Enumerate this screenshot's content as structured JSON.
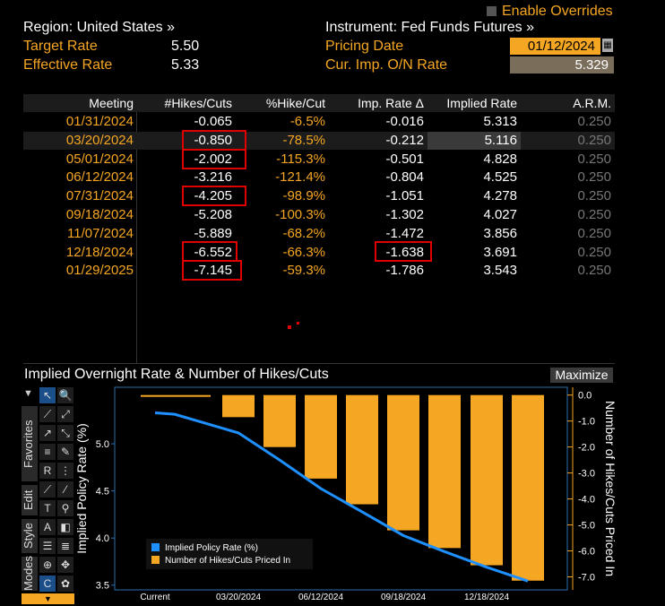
{
  "header": {
    "region": "Region: United States »",
    "instrument": "Instrument: Fed Funds Futures »",
    "enable_overrides": "Enable Overrides",
    "target_rate_label": "Target Rate",
    "target_rate_value": "5.50",
    "effective_rate_label": "Effective Rate",
    "effective_rate_value": "5.33",
    "pricing_date_label": "Pricing Date",
    "pricing_date_value": "01/12/2024",
    "cur_imp_label": "Cur. Imp. O/N Rate",
    "cur_imp_value": "5.329"
  },
  "table": {
    "columns": [
      "Meeting",
      "#Hikes/Cuts",
      "%Hike/Cut",
      "Imp. Rate Δ",
      "Implied Rate",
      "A.R.M."
    ],
    "rows": [
      [
        "01/31/2024",
        "-0.065",
        "-6.5%",
        "-0.016",
        "5.313",
        "0.250"
      ],
      [
        "03/20/2024",
        "-0.850",
        "-78.5%",
        "-0.212",
        "5.116",
        "0.250"
      ],
      [
        "05/01/2024",
        "-2.002",
        "-115.3%",
        "-0.501",
        "4.828",
        "0.250"
      ],
      [
        "06/12/2024",
        "-3.216",
        "-121.4%",
        "-0.804",
        "4.525",
        "0.250"
      ],
      [
        "07/31/2024",
        "-4.205",
        "-98.9%",
        "-1.051",
        "4.278",
        "0.250"
      ],
      [
        "09/18/2024",
        "-5.208",
        "-100.3%",
        "-1.302",
        "4.027",
        "0.250"
      ],
      [
        "11/07/2024",
        "-5.889",
        "-68.2%",
        "-1.472",
        "3.856",
        "0.250"
      ],
      [
        "12/18/2024",
        "-6.552",
        "-66.3%",
        "-1.638",
        "3.691",
        "0.250"
      ],
      [
        "01/29/2025",
        "-7.145",
        "-59.3%",
        "-1.786",
        "3.543",
        "0.250"
      ]
    ]
  },
  "chart_section": {
    "title": "Implied Overnight Rate & Number of Hikes/Cuts",
    "maximize": "Maximize"
  },
  "toolbar": {
    "favorites": "Favorites",
    "edit": "Edit",
    "style": "Style",
    "modes": "Modes"
  },
  "chart_data": {
    "type": "bar",
    "categories": [
      "Current",
      "01/31/2024",
      "03/20/2024",
      "05/01/2024",
      "06/12/2024",
      "07/31/2024",
      "09/18/2024",
      "11/07/2024",
      "12/18/2024",
      "01/29/2025"
    ],
    "x_tick_labels": [
      "Current",
      "03/20/2024",
      "06/12/2024",
      "09/18/2024",
      "12/18/2024"
    ],
    "series": [
      {
        "name": "Implied Policy Rate (%)",
        "type": "line",
        "color": "#1e90ff",
        "axis": "left",
        "values": [
          5.329,
          5.313,
          5.116,
          4.828,
          4.525,
          4.278,
          4.027,
          3.856,
          3.691,
          3.543
        ]
      },
      {
        "name": "Number of Hikes/Cuts Priced In",
        "type": "bar",
        "color": "#f5a623",
        "axis": "right",
        "values": [
          0,
          -0.065,
          -0.85,
          -2.002,
          -3.216,
          -4.205,
          -5.208,
          -5.889,
          -6.552,
          -7.145
        ]
      }
    ],
    "ylabel": "Implied Policy Rate (%)",
    "y2label": "Number of Hikes/Cuts Priced In",
    "ylim": [
      3.45,
      5.6
    ],
    "y2lim": [
      -7.5,
      0.3
    ],
    "yticks": [
      "3.5",
      "4.0",
      "4.5",
      "5.0"
    ],
    "y2ticks": [
      "0.0",
      "-1.0",
      "-2.0",
      "-3.0",
      "-4.0",
      "-5.0",
      "-6.0",
      "-7.0"
    ],
    "legend_position": "bottom-left"
  }
}
